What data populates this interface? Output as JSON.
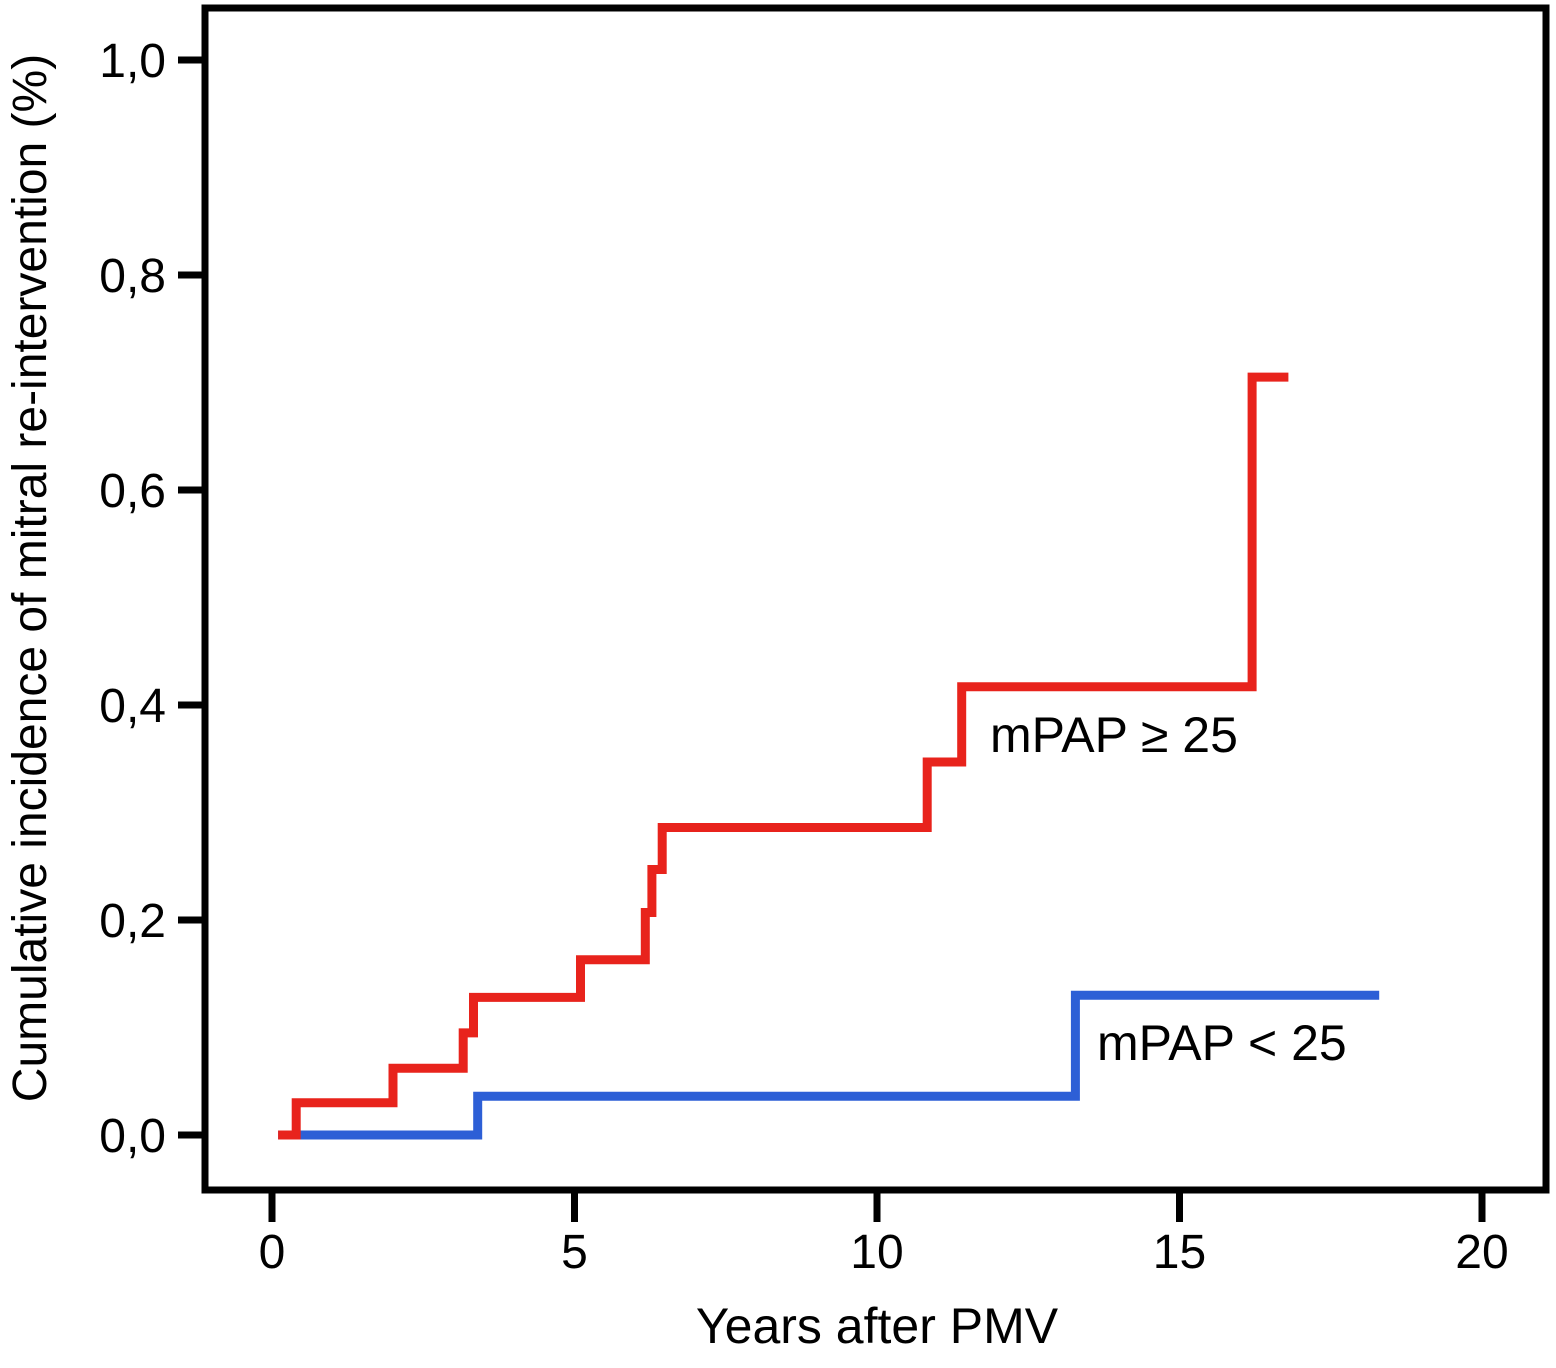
{
  "figure": {
    "background": "#ffffff"
  },
  "chart_data": {
    "type": "line",
    "variant": "cumulative-incidence-step-curves",
    "title": "",
    "xlabel": "Years after PMV",
    "ylabel": "Cumulative incidence of mitral re-intervention (%)",
    "xlim": [
      0,
      20
    ],
    "ylim": [
      0.0,
      1.0
    ],
    "x_ticks": [
      0,
      5,
      10,
      15,
      20
    ],
    "x_tick_labels": [
      "0",
      "5",
      "10",
      "15",
      "20"
    ],
    "y_ticks": [
      0.0,
      0.2,
      0.4,
      0.6,
      0.8,
      1.0
    ],
    "y_tick_labels": [
      "0,0",
      "0,2",
      "0,4",
      "0,6",
      "0,8",
      "1,0"
    ],
    "decimal_separator": ",",
    "grid": false,
    "legend_position": "inline-annotations",
    "axis_color": "#000000",
    "series": [
      {
        "name": "mPAP >= 25",
        "slug": "mpap-ge-25",
        "label": "mPAP ≥ 25",
        "color": "#e8231c",
        "start": [
          0.1,
          0.0
        ],
        "steps": [
          [
            0.4,
            0.03
          ],
          [
            2.0,
            0.062
          ],
          [
            3.16,
            0.095
          ],
          [
            3.33,
            0.128
          ],
          [
            5.1,
            0.163
          ],
          [
            6.17,
            0.207
          ],
          [
            6.28,
            0.247
          ],
          [
            6.45,
            0.286
          ],
          [
            10.83,
            0.347
          ],
          [
            11.4,
            0.417
          ],
          [
            16.2,
            0.705
          ]
        ],
        "end_x": 16.8,
        "final_value": 0.705
      },
      {
        "name": "mPAP < 25",
        "slug": "mpap-lt-25",
        "label": "mPAP < 25",
        "color": "#2d5fd6",
        "start": [
          0.1,
          0.0
        ],
        "steps": [
          [
            3.4,
            0.036
          ],
          [
            13.28,
            0.13
          ]
        ],
        "end_x": 18.3,
        "final_value": 0.13
      }
    ]
  }
}
